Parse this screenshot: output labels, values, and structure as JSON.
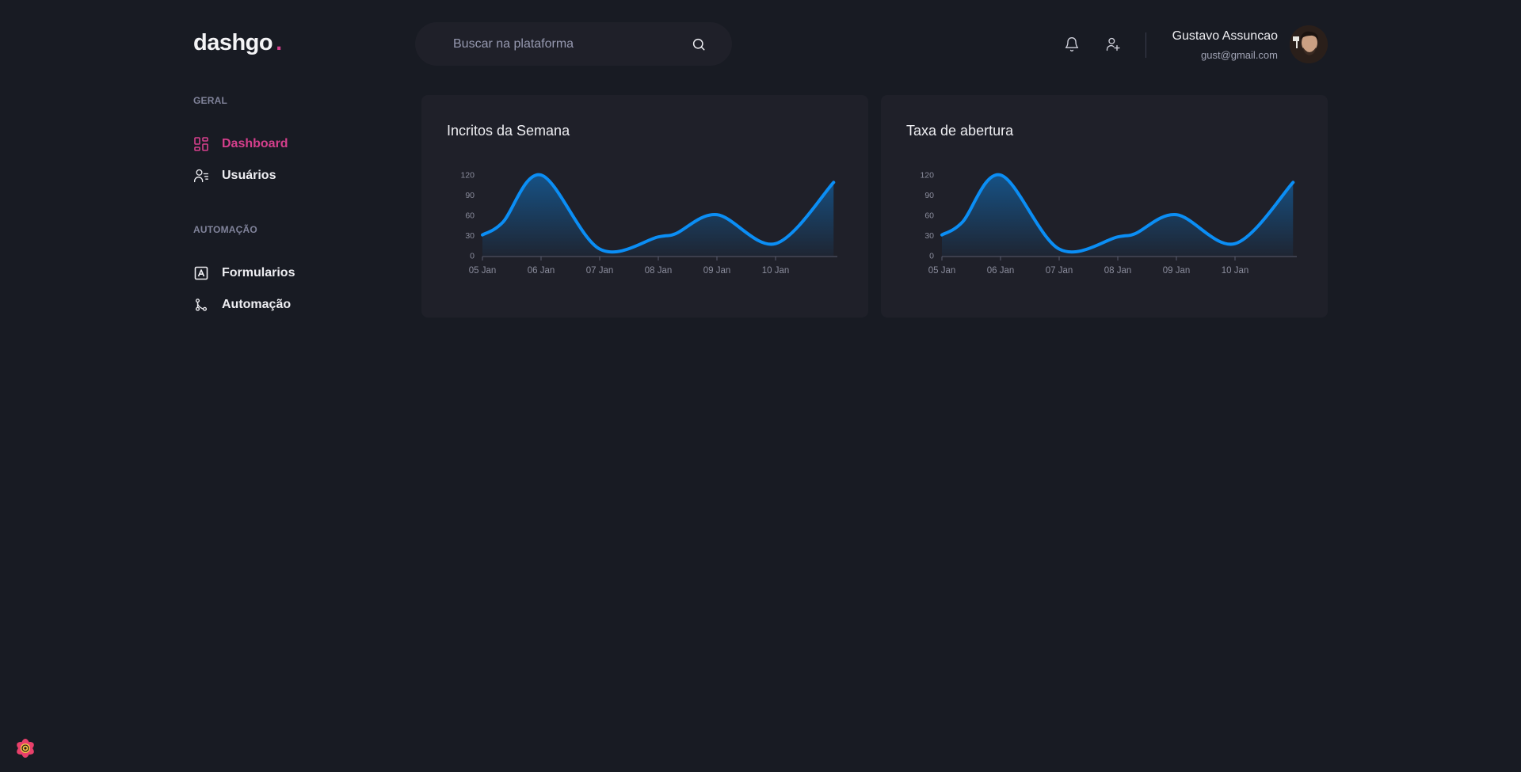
{
  "brand": {
    "name": "dashgo",
    "dot": ".",
    "dot_color": "#d53f8c"
  },
  "search": {
    "placeholder": "Buscar na plataforma",
    "value": "",
    "icon": "search-icon"
  },
  "header": {
    "notification_icon": "bell-icon",
    "add_user_icon": "user-add-icon",
    "profile": {
      "name": "Gustavo Assuncao",
      "email": "gust@gmail.com"
    }
  },
  "sidebar": {
    "sections": [
      {
        "title": "GERAL",
        "items": [
          {
            "label": "Dashboard",
            "icon": "dashboard-icon",
            "active": true
          },
          {
            "label": "Usuários",
            "icon": "users-icon",
            "active": false
          }
        ]
      },
      {
        "title": "AUTOMAÇÃO",
        "items": [
          {
            "label": "Formularios",
            "icon": "form-icon",
            "active": false
          },
          {
            "label": "Automação",
            "icon": "git-merge-icon",
            "active": false
          }
        ]
      }
    ]
  },
  "colors": {
    "accent": "#d53f8c",
    "series": "#0b8ef5",
    "background": "#181b23",
    "card": "#1f2029"
  },
  "chart_data": [
    {
      "type": "area",
      "title": "Incritos da Semana",
      "x": [
        "05 Jan",
        "05 Jan",
        "06 Jan",
        "07 Jan",
        "08 Jan",
        "08 Jan",
        "09 Jan",
        "10 Jan",
        "10 Jan"
      ],
      "x_ticks": [
        "05 Jan",
        "06 Jan",
        "07 Jan",
        "08 Jan",
        "09 Jan",
        "10 Jan"
      ],
      "y_ticks": [
        0,
        30,
        60,
        90,
        120
      ],
      "ylim": [
        0,
        120
      ],
      "series": [
        {
          "values": [
            31,
            50,
            120,
            10,
            28,
            33,
            61,
            18,
            109
          ]
        }
      ]
    },
    {
      "type": "area",
      "title": "Taxa de abertura",
      "x": [
        "05 Jan",
        "05 Jan",
        "06 Jan",
        "07 Jan",
        "08 Jan",
        "08 Jan",
        "09 Jan",
        "10 Jan",
        "10 Jan"
      ],
      "x_ticks": [
        "05 Jan",
        "06 Jan",
        "07 Jan",
        "08 Jan",
        "09 Jan",
        "10 Jan"
      ],
      "y_ticks": [
        0,
        30,
        60,
        90,
        120
      ],
      "ylim": [
        0,
        120
      ],
      "series": [
        {
          "values": [
            31,
            50,
            120,
            10,
            28,
            33,
            61,
            18,
            109
          ]
        }
      ]
    }
  ]
}
